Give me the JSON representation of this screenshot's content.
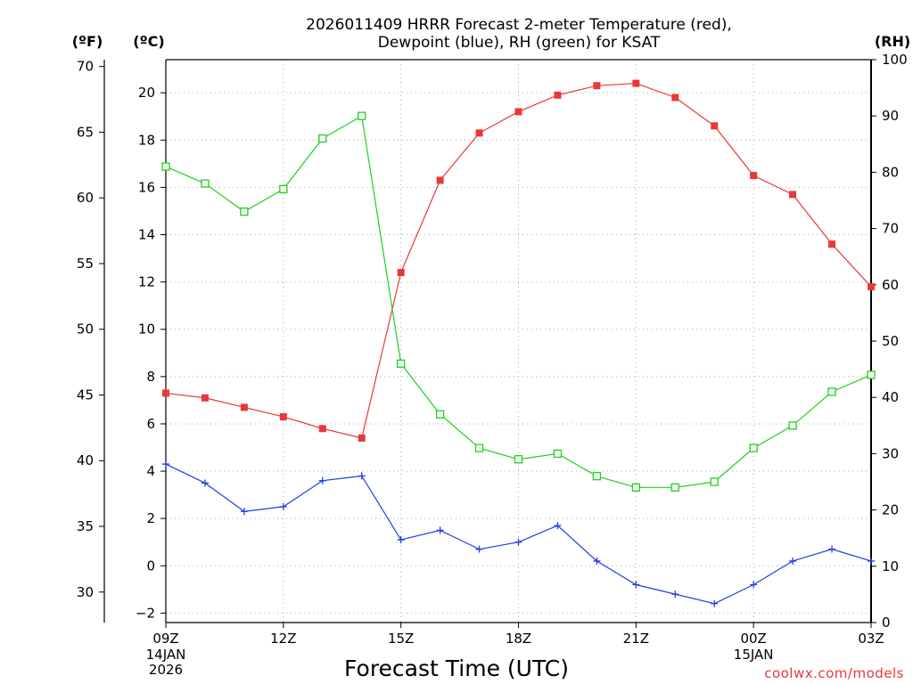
{
  "chart_data": {
    "type": "line",
    "title_line1": "2026011409 HRRR Forecast 2-meter Temperature (red),",
    "title_line2": "Dewpoint (blue), RH (green) for KSAT",
    "xlabel": "Forecast Time (UTC)",
    "x_ticks": [
      "09Z",
      "12Z",
      "15Z",
      "18Z",
      "21Z",
      "00Z",
      "03Z"
    ],
    "x_date_labels": [
      {
        "tick": "09Z",
        "lines": [
          "14JAN",
          "2026"
        ]
      },
      {
        "tick": "00Z",
        "lines": [
          "15JAN"
        ]
      }
    ],
    "x": [
      "09Z",
      "10Z",
      "11Z",
      "12Z",
      "13Z",
      "14Z",
      "15Z",
      "16Z",
      "17Z",
      "18Z",
      "19Z",
      "20Z",
      "21Z",
      "22Z",
      "23Z",
      "00Z",
      "01Z",
      "02Z",
      "03Z"
    ],
    "xlim": [
      0,
      18
    ],
    "axes": {
      "fahrenheit": {
        "label": "(ºF)",
        "ticks": [
          "70",
          "65",
          "60",
          "55",
          "50",
          "45",
          "40",
          "35",
          "30"
        ],
        "ylim": [
          27.68,
          70.52
        ]
      },
      "celsius": {
        "label": "(ºC)",
        "ticks": [
          "20",
          "18",
          "16",
          "14",
          "12",
          "10",
          "8",
          "6",
          "4",
          "2",
          "0",
          "−2"
        ],
        "ylim": [
          -2.4,
          21.4
        ]
      },
      "rh": {
        "label": "(RH)",
        "ticks": [
          "100",
          "90",
          "80",
          "70",
          "60",
          "50",
          "40",
          "30",
          "20",
          "10",
          "0"
        ],
        "ylim": [
          0,
          100
        ]
      }
    },
    "series": [
      {
        "name": "Temperature",
        "axis": "celsius",
        "color": "#e8383a",
        "marker": "filled-square",
        "values": [
          7.3,
          7.1,
          6.7,
          6.3,
          5.8,
          5.4,
          12.4,
          16.3,
          18.3,
          19.2,
          19.9,
          20.3,
          20.4,
          19.8,
          18.6,
          16.5,
          15.7,
          13.6,
          11.8
        ]
      },
      {
        "name": "Dewpoint",
        "axis": "celsius",
        "color": "#1f3fe0",
        "marker": "plus",
        "values": [
          4.3,
          3.5,
          2.3,
          2.5,
          3.6,
          3.8,
          1.1,
          1.5,
          0.7,
          1.0,
          1.7,
          0.2,
          -0.8,
          -1.2,
          -1.6,
          -0.8,
          0.2,
          0.7,
          0.2
        ]
      },
      {
        "name": "RH",
        "axis": "rh",
        "color": "#1ed11e",
        "marker": "open-square",
        "values": [
          81,
          78,
          73,
          77,
          86,
          90,
          46,
          37,
          31,
          29,
          30,
          26,
          24,
          24,
          25,
          31,
          35,
          41,
          44
        ]
      }
    ],
    "credit": "coolwx.com/models"
  }
}
